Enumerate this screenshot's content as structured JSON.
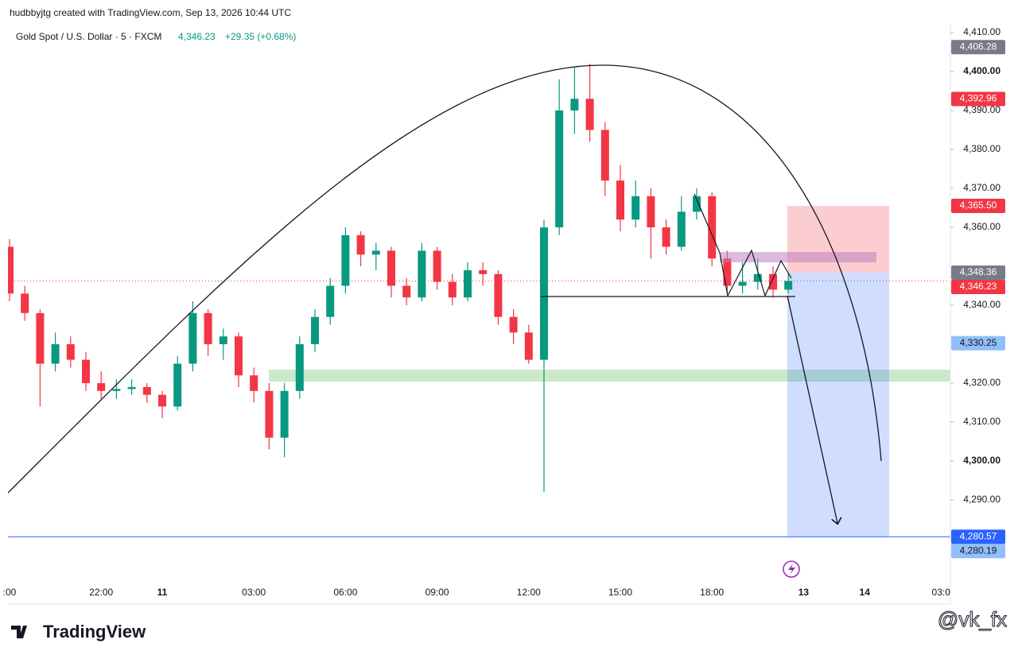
{
  "chart_data": {
    "type": "candlestick",
    "header": "hudbbyjtg created with TradingView.com, Sep 13, 2026 10:44 UTC",
    "title": "Gold Spot / U.S. Dollar · 5 · FXCM",
    "price_text": "4,346.23",
    "change_text": "+29.35 (+0.68%)",
    "brand": "TradingView",
    "watermark": "@vk_fx",
    "up_color": "#089981",
    "down_color": "#f23645",
    "categories": [
      ":00",
      null,
      null,
      null,
      null,
      null,
      "22:00",
      null,
      null,
      null,
      "11",
      null,
      null,
      null,
      null,
      null,
      "03:00",
      null,
      null,
      null,
      null,
      null,
      "06:00",
      null,
      null,
      null,
      null,
      null,
      "09:00",
      null,
      null,
      null,
      null,
      null,
      "12:00",
      null,
      null,
      null,
      null,
      null,
      "15:00",
      null,
      null,
      null,
      null,
      null,
      "18:00",
      null,
      null,
      null,
      null,
      null,
      "13",
      null,
      null,
      null,
      "14",
      null,
      null,
      null,
      null,
      "03:0"
    ],
    "open": [
      4355,
      4343,
      4338,
      4325,
      4330,
      4326,
      4320,
      4318,
      4318.5,
      4319,
      4317,
      4314,
      4325,
      4338,
      4330,
      4332,
      4322,
      4318,
      4306,
      4318,
      4330,
      4337,
      4345,
      4358,
      4353,
      4354,
      4345,
      4342,
      4354,
      4346,
      4342,
      4349,
      4348,
      4337,
      4333,
      4326,
      4360,
      4390,
      4393,
      4385,
      4372,
      4362,
      4368,
      4360,
      4355,
      4364,
      4368,
      4352,
      4345,
      4346,
      4348,
      4344,
      null,
      null,
      null,
      null,
      null,
      null,
      null,
      null,
      null,
      null
    ],
    "high": [
      4357,
      4345,
      4339,
      4333,
      4332,
      4328,
      4323,
      4321,
      4321,
      4320,
      4318,
      4327,
      4341,
      4339,
      4334,
      4333,
      4324,
      4320,
      4320,
      4332,
      4339,
      4347,
      4360,
      4359,
      4356,
      4355,
      4347,
      4356,
      4355,
      4348,
      4351,
      4351,
      4349,
      4339,
      4335,
      4362,
      4398,
      4401,
      4402,
      4387,
      4376,
      4372,
      4370,
      4362,
      4368,
      4370,
      4369,
      4354,
      4351,
      4352,
      4350,
      4348,
      null,
      null,
      null,
      null,
      null,
      null,
      null,
      null,
      null,
      null
    ],
    "low": [
      4341,
      4336,
      4314,
      4323,
      4324,
      4318,
      4316,
      4316,
      4317,
      4315,
      4311,
      4313,
      4323,
      4327,
      4326,
      4319,
      4315,
      4303,
      4301,
      4316,
      4328,
      4335,
      4343,
      4350,
      4349,
      4342,
      4340,
      4341,
      4344,
      4340,
      4341,
      4345,
      4335,
      4330,
      4325,
      4292,
      4358,
      4384,
      4382,
      4368,
      4359,
      4360,
      4352,
      4353,
      4354,
      4362,
      4350,
      4343,
      4343,
      4344,
      4342,
      4343,
      null,
      null,
      null,
      null,
      null,
      null,
      null,
      null,
      null,
      null
    ],
    "close": [
      4343,
      4338,
      4325,
      4330,
      4326,
      4320,
      4318,
      4318.5,
      4319,
      4317,
      4314,
      4325,
      4338,
      4330,
      4332,
      4322,
      4318,
      4306,
      4318,
      4330,
      4337,
      4345,
      4358,
      4353,
      4354,
      4345,
      4342,
      4354,
      4346,
      4342,
      4349,
      4348,
      4337,
      4333,
      4326,
      4360,
      4390,
      4393,
      4385,
      4372,
      4362,
      4368,
      4360,
      4355,
      4364,
      4368,
      4352,
      4345,
      4346,
      4348,
      4344,
      4346.23,
      null,
      null,
      null,
      null,
      null,
      null,
      null,
      null,
      null,
      null
    ],
    "ylim": [
      4263.27,
      4412.24
    ],
    "yticks": [
      {
        "value": 4410,
        "label": "4,410.00"
      },
      {
        "value": 4400,
        "label": "4,400.00"
      },
      {
        "value": 4390,
        "label": "4,390.00"
      },
      {
        "value": 4380,
        "label": "4,380.00"
      },
      {
        "value": 4370,
        "label": "4,370.00"
      },
      {
        "value": 4360,
        "label": "4,360.00"
      },
      {
        "value": 4340,
        "label": "4,340.00"
      },
      {
        "value": 4320,
        "label": "4,320.00"
      },
      {
        "value": 4310,
        "label": "4,310.00"
      },
      {
        "value": 4300,
        "label": "4,300.00"
      },
      {
        "value": 4290,
        "label": "4,290.00"
      }
    ],
    "price_labels": [
      {
        "value": 4406.28,
        "label": "4,406.28",
        "color": "#787b86",
        "text_color": "#ffffff"
      },
      {
        "value": 4392.96,
        "label": "4,392.96",
        "color": "#f23645",
        "text_color": "#ffffff"
      },
      {
        "value": 4365.5,
        "label": "4,365.50",
        "color": "#f23645",
        "text_color": "#ffffff"
      },
      {
        "value": 4348.36,
        "label": "4,348.36",
        "color": "#787b86",
        "text_color": "#ffffff"
      },
      {
        "value": 4346.23,
        "label": "4,346.23",
        "color": "#f23645",
        "text_color": "#ffffff"
      },
      {
        "value": 4330.25,
        "label": "4,330.25",
        "color": "#90bff9",
        "text_color": "#131722"
      },
      {
        "value": 4280.57,
        "label": "4,280.57",
        "color": "#2962ff",
        "text_color": "#ffffff"
      },
      {
        "value": 4280.19,
        "label": "4,280.19",
        "color": "#90bff9",
        "text_color": "#131722"
      }
    ]
  }
}
